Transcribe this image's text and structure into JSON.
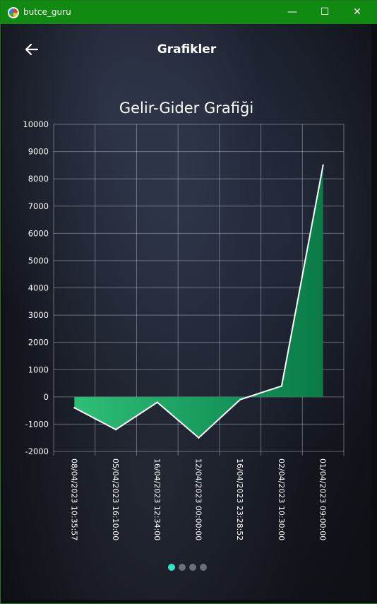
{
  "window": {
    "title": "butce_guru",
    "minimize": "—",
    "maximize": "☐",
    "close": "✕"
  },
  "header": {
    "title": "Grafikler",
    "back_icon": "arrow-left-icon"
  },
  "chart_data": {
    "type": "area",
    "title": "Gelir-Gider Grafiği",
    "xlabel": "",
    "ylabel": "",
    "categories": [
      "08/04/2023 10:35:57",
      "05/04/2023 16:10:00",
      "16/04/2023 12:34:00",
      "12/04/2023 00:00:00",
      "16/04/2023 23:28:52",
      "02/04/2023 10:30:00",
      "01/04/2023 09:00:00"
    ],
    "values": [
      -400,
      -1200,
      -200,
      -1500,
      -100,
      400,
      8500
    ],
    "ylim": [
      -2000,
      10000
    ],
    "yticks": [
      10000,
      9000,
      8000,
      7000,
      6000,
      5000,
      4000,
      3000,
      2000,
      1000,
      0,
      -1000,
      -2000
    ],
    "grid": true,
    "fill_color": "#1fa463",
    "line_color": "#ffffff"
  },
  "pager": {
    "count": 4,
    "active": 0,
    "active_color": "#2ee6c9"
  }
}
